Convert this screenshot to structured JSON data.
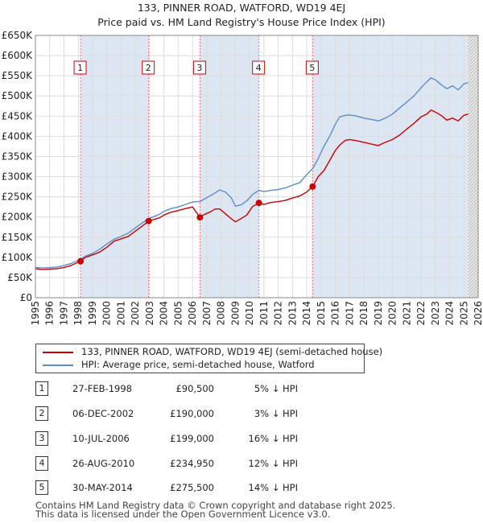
{
  "header": {
    "title": "133, PINNER ROAD, WATFORD, WD19 4EJ",
    "subtitle": "Price paid vs. HM Land Registry's House Price Index (HPI)"
  },
  "colors": {
    "price": "#cc0000",
    "hpi": "#5b8ec8",
    "shade": "#dde6f3",
    "grid": "#dddddd",
    "marker_line": "#ff6666",
    "future": "#e8e8e8"
  },
  "chart_data": {
    "type": "line",
    "title": "133, PINNER ROAD, WATFORD, WD19 4EJ",
    "subtitle": "Price paid vs. HM Land Registry's House Price Index (HPI)",
    "xlabel": "",
    "ylabel": "",
    "xlim": [
      1995,
      2026
    ],
    "ylim": [
      0,
      650000
    ],
    "yticks": [
      0,
      50000,
      100000,
      150000,
      200000,
      250000,
      300000,
      350000,
      400000,
      450000,
      500000,
      550000,
      600000,
      650000
    ],
    "ytick_labels": [
      "£0",
      "£50K",
      "£100K",
      "£150K",
      "£200K",
      "£250K",
      "£300K",
      "£350K",
      "£400K",
      "£450K",
      "£500K",
      "£550K",
      "£600K",
      "£650K"
    ],
    "xticks": [
      1995,
      1996,
      1997,
      1998,
      1999,
      2000,
      2001,
      2002,
      2003,
      2004,
      2005,
      2006,
      2007,
      2008,
      2009,
      2010,
      2011,
      2012,
      2013,
      2014,
      2015,
      2016,
      2017,
      2018,
      2019,
      2020,
      2021,
      2022,
      2023,
      2024,
      2025,
      2026
    ],
    "grid": true,
    "shaded_spans": [
      [
        1998.16,
        2002.93
      ],
      [
        2006.52,
        2010.65
      ],
      [
        2014.41,
        2025.3
      ]
    ],
    "future_start": 2025.3,
    "series": [
      {
        "name": "133, PINNER ROAD, WATFORD, WD19 4EJ (semi-detached house)",
        "color": "#cc0000",
        "x": [
          1995.0,
          1995.5,
          1996.0,
          1996.5,
          1997.0,
          1997.5,
          1998.16,
          1998.5,
          1999.0,
          1999.5,
          2000.0,
          2000.5,
          2001.0,
          2001.5,
          2002.0,
          2002.5,
          2002.93,
          2003.3,
          2003.7,
          2004.0,
          2004.5,
          2005.0,
          2005.5,
          2006.0,
          2006.3,
          2006.52,
          2006.8,
          2007.2,
          2007.6,
          2007.9,
          2008.3,
          2008.7,
          2009.0,
          2009.4,
          2009.8,
          2010.2,
          2010.65,
          2011.0,
          2011.5,
          2012.0,
          2012.5,
          2013.0,
          2013.5,
          2014.0,
          2014.41,
          2014.8,
          2015.2,
          2015.6,
          2016.0,
          2016.3,
          2016.7,
          2017.0,
          2017.5,
          2018.0,
          2018.5,
          2019.0,
          2019.5,
          2020.0,
          2020.5,
          2021.0,
          2021.5,
          2022.0,
          2022.4,
          2022.7,
          2023.0,
          2023.4,
          2023.8,
          2024.2,
          2024.6,
          2025.0,
          2025.3
        ],
        "values": [
          72000,
          70000,
          71000,
          72000,
          75000,
          80000,
          90500,
          100000,
          106000,
          113000,
          125000,
          140000,
          146000,
          152000,
          165000,
          178000,
          190000,
          194000,
          198000,
          205000,
          212000,
          216000,
          221000,
          225000,
          210000,
          199000,
          206000,
          212000,
          220000,
          220000,
          208000,
          196000,
          188000,
          196000,
          205000,
          226000,
          234950,
          231000,
          236000,
          238000,
          241000,
          247000,
          252000,
          262000,
          275500,
          300000,
          315000,
          340000,
          365000,
          378000,
          390000,
          392000,
          389000,
          385000,
          381000,
          377000,
          385000,
          392000,
          403000,
          418000,
          432000,
          448000,
          455000,
          465000,
          460000,
          452000,
          440000,
          445000,
          438000,
          452000,
          455000
        ]
      },
      {
        "name": "HPI: Average price, semi-detached house, Watford",
        "color": "#5b8ec8",
        "x": [
          1995.0,
          1995.5,
          1996.0,
          1996.5,
          1997.0,
          1997.5,
          1998.16,
          1998.5,
          1999.0,
          1999.5,
          2000.0,
          2000.5,
          2001.0,
          2001.5,
          2002.0,
          2002.5,
          2002.93,
          2003.3,
          2003.7,
          2004.0,
          2004.5,
          2005.0,
          2005.5,
          2006.0,
          2006.3,
          2006.52,
          2006.8,
          2007.2,
          2007.6,
          2007.9,
          2008.3,
          2008.7,
          2009.0,
          2009.4,
          2009.8,
          2010.2,
          2010.65,
          2011.0,
          2011.5,
          2012.0,
          2012.5,
          2013.0,
          2013.5,
          2014.0,
          2014.41,
          2014.8,
          2015.2,
          2015.6,
          2016.0,
          2016.3,
          2016.7,
          2017.0,
          2017.5,
          2018.0,
          2018.5,
          2019.0,
          2019.5,
          2020.0,
          2020.5,
          2021.0,
          2021.5,
          2022.0,
          2022.4,
          2022.7,
          2023.0,
          2023.4,
          2023.8,
          2024.2,
          2024.6,
          2025.0,
          2025.3
        ],
        "values": [
          75000,
          74000,
          74500,
          76000,
          80000,
          85000,
          95000,
          103000,
          110000,
          120000,
          133000,
          145000,
          152000,
          160000,
          173000,
          186000,
          196000,
          201000,
          207000,
          214000,
          221000,
          225000,
          231000,
          237000,
          238000,
          238000,
          244000,
          252000,
          260000,
          267000,
          262000,
          248000,
          227000,
          230000,
          240000,
          256000,
          266000,
          263000,
          266000,
          268000,
          272000,
          279000,
          285000,
          305000,
          320000,
          345000,
          375000,
          400000,
          430000,
          448000,
          452000,
          453000,
          450000,
          445000,
          442000,
          438000,
          445000,
          455000,
          470000,
          485000,
          500000,
          520000,
          535000,
          545000,
          540000,
          528000,
          518000,
          525000,
          515000,
          530000,
          533000
        ]
      }
    ],
    "markers": [
      {
        "label": "1",
        "x": 1998.16,
        "y": 90500
      },
      {
        "label": "2",
        "x": 2002.93,
        "y": 190000
      },
      {
        "label": "3",
        "x": 2006.52,
        "y": 199000
      },
      {
        "label": "4",
        "x": 2010.65,
        "y": 234950
      },
      {
        "label": "5",
        "x": 2014.41,
        "y": 275500
      }
    ]
  },
  "legend": {
    "items": [
      {
        "label": "133, PINNER ROAD, WATFORD, WD19 4EJ (semi-detached house)"
      },
      {
        "label": "HPI: Average price, semi-detached house, Watford"
      }
    ]
  },
  "transactions": [
    {
      "num": "1",
      "date": "27-FEB-1998",
      "price": "£90,500",
      "hpi": "5% ↓ HPI"
    },
    {
      "num": "2",
      "date": "06-DEC-2002",
      "price": "£190,000",
      "hpi": "3% ↓ HPI"
    },
    {
      "num": "3",
      "date": "10-JUL-2006",
      "price": "£199,000",
      "hpi": "16% ↓ HPI"
    },
    {
      "num": "4",
      "date": "26-AUG-2010",
      "price": "£234,950",
      "hpi": "12% ↓ HPI"
    },
    {
      "num": "5",
      "date": "30-MAY-2014",
      "price": "£275,500",
      "hpi": "14% ↓ HPI"
    }
  ],
  "footer": {
    "line1": "Contains HM Land Registry data © Crown copyright and database right 2025.",
    "line2": "This data is licensed under the Open Government Licence v3.0."
  }
}
